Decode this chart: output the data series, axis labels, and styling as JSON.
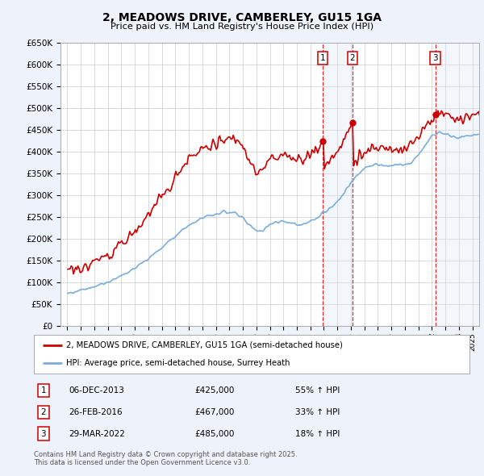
{
  "title": "2, MEADOWS DRIVE, CAMBERLEY, GU15 1GA",
  "subtitle": "Price paid vs. HM Land Registry's House Price Index (HPI)",
  "footer": "Contains HM Land Registry data © Crown copyright and database right 2025.\nThis data is licensed under the Open Government Licence v3.0.",
  "legend_line1": "2, MEADOWS DRIVE, CAMBERLEY, GU15 1GA (semi-detached house)",
  "legend_line2": "HPI: Average price, semi-detached house, Surrey Heath",
  "sales": [
    {
      "num": 1,
      "date": "06-DEC-2013",
      "price": "£425,000",
      "hpi": "55% ↑ HPI",
      "year": 2013.917
    },
    {
      "num": 2,
      "date": "26-FEB-2016",
      "price": "£467,000",
      "hpi": "33% ↑ HPI",
      "year": 2016.125
    },
    {
      "num": 3,
      "date": "29-MAR-2022",
      "price": "£485,000",
      "hpi": "18% ↑ HPI",
      "year": 2022.25
    }
  ],
  "ylim": [
    0,
    650000
  ],
  "xlim": [
    1994.5,
    2025.5
  ],
  "bg_color": "#eef2fb",
  "plot_bg": "#ffffff",
  "red_color": "#cc0000",
  "blue_color": "#7aaddb",
  "grid_color": "#cccccc",
  "shade_color": "#dae4f5"
}
